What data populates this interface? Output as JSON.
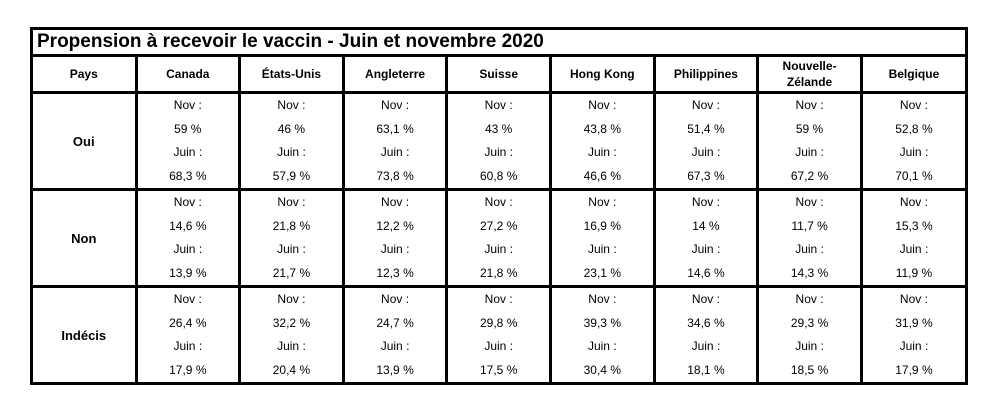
{
  "title": "Propension à recevoir le vaccin - Juin et novembre 2020",
  "header_first": "Pays",
  "countries": [
    "Canada",
    "États-Unis",
    "Angleterre",
    "Suisse",
    "Hong Kong",
    "Philippines",
    "Nouvelle-Zélande",
    "Belgique"
  ],
  "nov_label": "Nov :",
  "juin_label": "Juin :",
  "rows": [
    {
      "label": "Oui",
      "nov": [
        "59 %",
        "46 %",
        "63,1 %",
        "43 %",
        "43,8 %",
        "51,4 %",
        "59 %",
        "52,8 %"
      ],
      "juin": [
        "68,3 %",
        "57,9 %",
        "73,8 %",
        "60,8 %",
        "46,6 %",
        "67,3 %",
        "67,2 %",
        "70,1 %"
      ]
    },
    {
      "label": "Non",
      "nov": [
        "14,6 %",
        "21,8 %",
        "12,2 %",
        "27,2 %",
        "16,9 %",
        "14 %",
        "11,7 %",
        "15,3 %"
      ],
      "juin": [
        "13,9 %",
        "21,7 %",
        "12,3 %",
        "21,8 %",
        "23,1 %",
        "14,6 %",
        "14,3 %",
        "11,9 %"
      ]
    },
    {
      "label": "Indécis",
      "nov": [
        "26,4 %",
        "32,2 %",
        "24,7 %",
        "29,8 %",
        "39,3 %",
        "34,6 %",
        "29,3 %",
        "31,9 %"
      ],
      "juin": [
        "17,9 %",
        "20,4 %",
        "13,9 %",
        "17,5 %",
        "30,4 %",
        "18,1 %",
        "18,5 %",
        "17,9 %"
      ]
    }
  ]
}
